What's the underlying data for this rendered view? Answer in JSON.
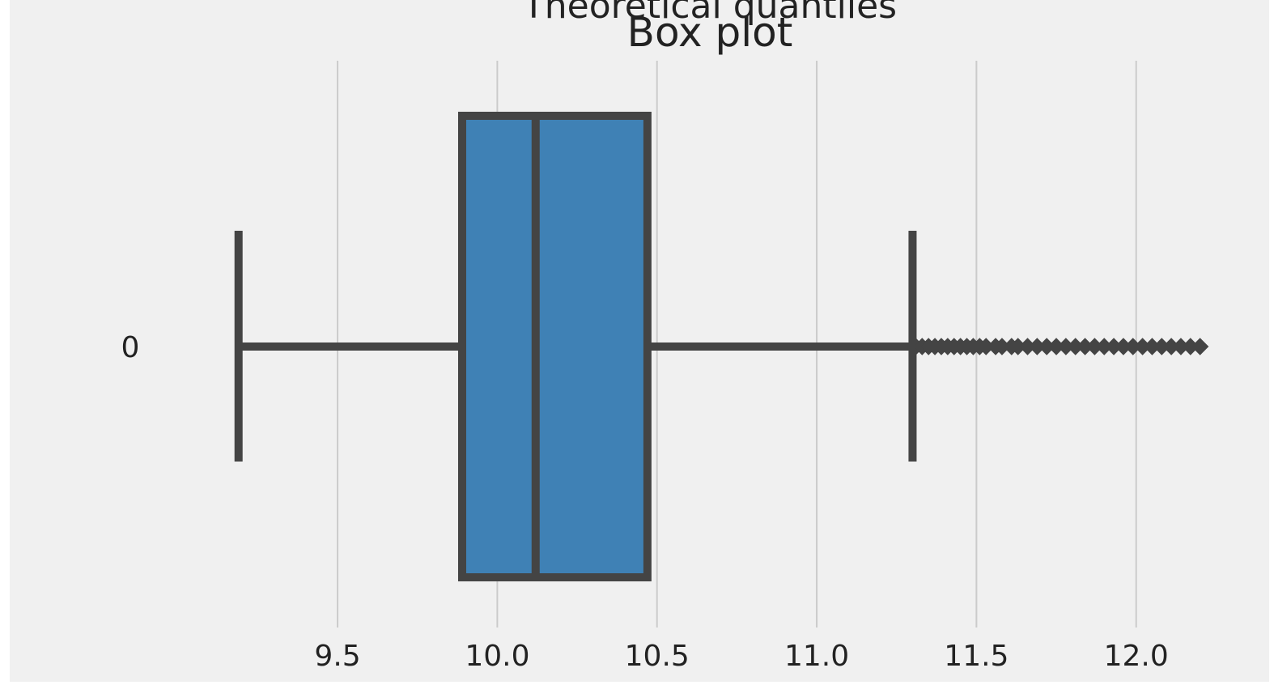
{
  "colors": {
    "background": "#f0f0f0",
    "grid": "#cbcbcb",
    "box_fill": "#3f81b5",
    "line": "#444444"
  },
  "chart_data": {
    "type": "box",
    "title": "Box plot",
    "overlapping_text": "Theoretical quantiles",
    "orientation": "horizontal",
    "categories": [
      "0"
    ],
    "x_ticks": [
      9.5,
      10.0,
      10.5,
      11.0,
      11.5,
      12.0
    ],
    "x_tick_labels": [
      "9.5",
      "10.0",
      "10.5",
      "11.0",
      "11.5",
      "12.0"
    ],
    "xlim": [
      8.95,
      12.32
    ],
    "grid": "vertical",
    "box": {
      "whisker_low": 9.19,
      "q1": 9.89,
      "median": 10.12,
      "q3": 10.47,
      "whisker_high": 11.3
    },
    "outliers": [
      11.31,
      11.33,
      11.35,
      11.37,
      11.39,
      11.41,
      11.43,
      11.45,
      11.47,
      11.49,
      11.51,
      11.53,
      11.56,
      11.58,
      11.61,
      11.63,
      11.66,
      11.69,
      11.72,
      11.75,
      11.78,
      11.81,
      11.84,
      11.87,
      11.9,
      11.93,
      11.96,
      11.99,
      12.02,
      12.05,
      12.08,
      12.11,
      12.14,
      12.17,
      12.2
    ]
  }
}
